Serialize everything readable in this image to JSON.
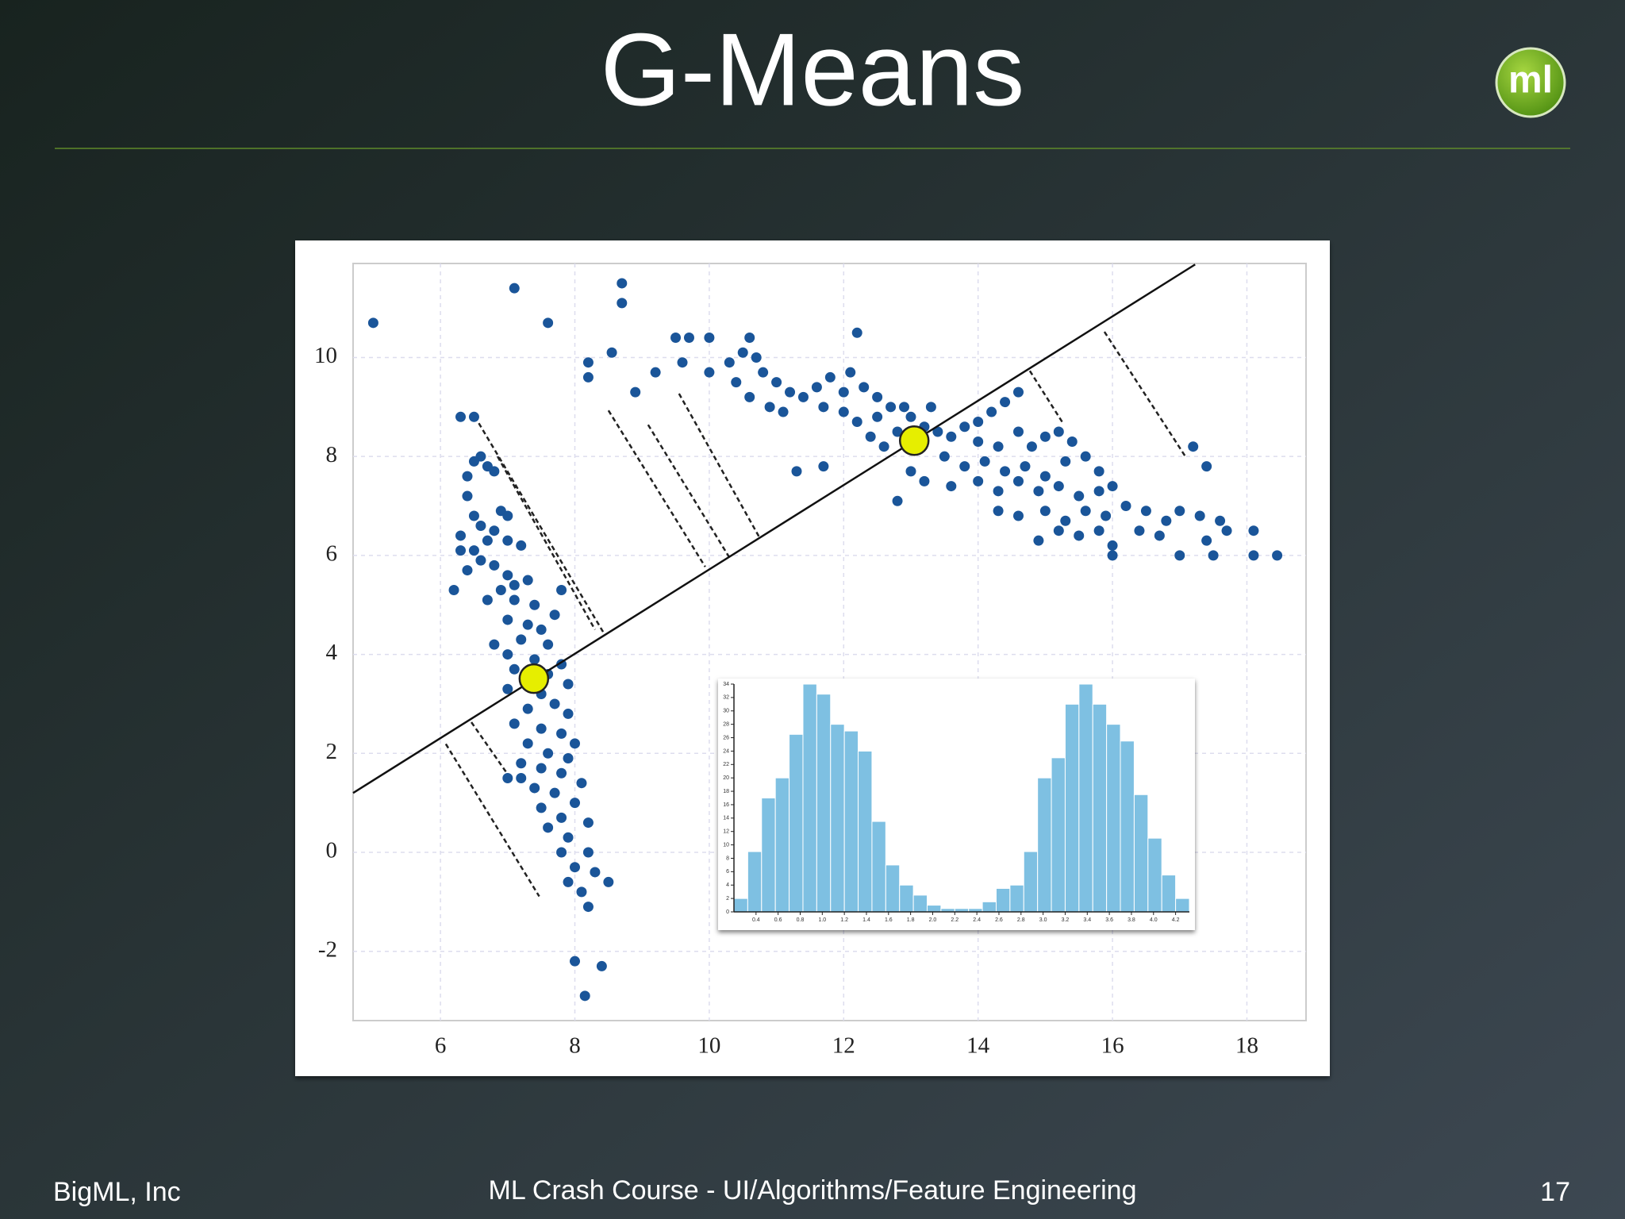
{
  "slide": {
    "title": "G-Means",
    "logo": "ml",
    "footer_left": "BigML, Inc",
    "footer_center": "ML Crash Course - UI/Algorithms/Feature Engineering",
    "page_number": "17"
  },
  "chart_data": [
    {
      "type": "scatter",
      "color": "#1a5599",
      "grid": true,
      "xlim": [
        4.7,
        18.88
      ],
      "ylim": [
        -3.4,
        11.9
      ],
      "xticks": [
        6,
        8,
        10,
        12,
        14,
        16,
        18
      ],
      "yticks": [
        -2,
        0,
        2,
        4,
        6,
        8,
        10
      ],
      "x": [
        6.3,
        6.5,
        6.6,
        6.5,
        6.4,
        6.7,
        6.8,
        6.4,
        6.5,
        6.6,
        6.3,
        6.7,
        6.9,
        7.0,
        6.8,
        6.3,
        6.5,
        7.0,
        7.2,
        6.6,
        6.8,
        6.4,
        7.0,
        7.1,
        6.9,
        7.3,
        6.2,
        6.7,
        7.1,
        7.4,
        7.8,
        7.7,
        7.0,
        7.3,
        7.5,
        7.2,
        7.6,
        6.8,
        7.0,
        7.4,
        7.8,
        7.1,
        7.6,
        7.9,
        7.0,
        7.5,
        7.7,
        7.3,
        7.9,
        7.1,
        7.5,
        7.8,
        8.0,
        7.3,
        7.6,
        7.9,
        7.2,
        7.5,
        7.8,
        8.1,
        7.4,
        7.7,
        8.0,
        7.5,
        7.8,
        8.2,
        7.6,
        7.9,
        8.2,
        7.8,
        8.0,
        8.3,
        7.9,
        8.1,
        8.2,
        8.5,
        7.0,
        7.2,
        8.0,
        8.4,
        8.15,
        5.0,
        7.1,
        7.6,
        8.7,
        8.7,
        8.2,
        8.2,
        8.55,
        8.9,
        9.2,
        9.5,
        9.7,
        10.0,
        9.6,
        10.0,
        10.3,
        10.5,
        10.6,
        10.7,
        10.4,
        10.8,
        11.0,
        11.2,
        10.6,
        10.9,
        11.1,
        11.4,
        11.6,
        11.8,
        12.1,
        12.2,
        12.0,
        12.3,
        12.5,
        11.7,
        12.0,
        12.2,
        12.5,
        12.7,
        12.9,
        13.0,
        13.3,
        13.2,
        12.4,
        12.6,
        12.8,
        13.4,
        13.6,
        13.8,
        14.0,
        14.2,
        14.4,
        14.6,
        14.0,
        14.3,
        14.6,
        14.8,
        15.0,
        15.2,
        15.4,
        13.5,
        13.8,
        14.1,
        14.4,
        14.7,
        15.0,
        15.3,
        15.6,
        15.8,
        13.0,
        13.2,
        13.6,
        14.0,
        14.3,
        14.6,
        14.9,
        15.2,
        15.5,
        15.8,
        16.0,
        14.3,
        14.6,
        15.0,
        15.3,
        15.6,
        15.9,
        16.2,
        16.5,
        16.8,
        17.0,
        17.3,
        17.6,
        14.9,
        15.2,
        15.5,
        15.8,
        16.0,
        16.4,
        16.7,
        17.0,
        17.4,
        17.5,
        17.7,
        18.1,
        18.1,
        18.45,
        17.2,
        17.4,
        11.3,
        11.7,
        12.8,
        16.0
      ],
      "y": [
        8.8,
        8.8,
        8.0,
        7.9,
        7.6,
        7.8,
        7.7,
        7.2,
        6.8,
        6.6,
        6.4,
        6.3,
        6.9,
        6.8,
        6.5,
        6.1,
        6.1,
        6.3,
        6.2,
        5.9,
        5.8,
        5.7,
        5.6,
        5.4,
        5.3,
        5.5,
        5.3,
        5.1,
        5.1,
        5.0,
        5.3,
        4.8,
        4.7,
        4.6,
        4.5,
        4.3,
        4.2,
        4.2,
        4.0,
        3.9,
        3.8,
        3.7,
        3.6,
        3.4,
        3.3,
        3.2,
        3.0,
        2.9,
        2.8,
        2.6,
        2.5,
        2.4,
        2.2,
        2.2,
        2.0,
        1.9,
        1.8,
        1.7,
        1.6,
        1.4,
        1.3,
        1.2,
        1.0,
        0.9,
        0.7,
        0.6,
        0.5,
        0.3,
        0.0,
        0.0,
        -0.3,
        -0.4,
        -0.6,
        -0.8,
        -1.1,
        -0.6,
        1.5,
        1.5,
        -2.2,
        -2.3,
        -2.9,
        10.7,
        11.4,
        10.7,
        11.5,
        11.1,
        9.6,
        9.9,
        10.1,
        9.3,
        9.7,
        10.4,
        10.4,
        10.4,
        9.9,
        9.7,
        9.9,
        10.1,
        10.4,
        10.0,
        9.5,
        9.7,
        9.5,
        9.3,
        9.2,
        9.0,
        8.9,
        9.2,
        9.4,
        9.6,
        9.7,
        10.5,
        9.3,
        9.4,
        9.2,
        9.0,
        8.9,
        8.7,
        8.8,
        9.0,
        9.0,
        8.8,
        9.0,
        8.6,
        8.4,
        8.2,
        8.5,
        8.5,
        8.4,
        8.6,
        8.7,
        8.9,
        9.1,
        9.3,
        8.3,
        8.2,
        8.5,
        8.2,
        8.4,
        8.5,
        8.3,
        8.0,
        7.8,
        7.9,
        7.7,
        7.8,
        7.6,
        7.9,
        8.0,
        7.7,
        7.7,
        7.5,
        7.4,
        7.5,
        7.3,
        7.5,
        7.3,
        7.4,
        7.2,
        7.3,
        7.4,
        6.9,
        6.8,
        6.9,
        6.7,
        6.9,
        6.8,
        7.0,
        6.9,
        6.7,
        6.9,
        6.8,
        6.7,
        6.3,
        6.5,
        6.4,
        6.5,
        6.2,
        6.5,
        6.4,
        6.0,
        6.3,
        6.0,
        6.5,
        6.5,
        6.0,
        6.0,
        8.2,
        7.8,
        7.7,
        7.8,
        7.1,
        6.0
      ],
      "line": {
        "x": [
          4.7,
          17.23
        ],
        "y": [
          1.2,
          11.88
        ]
      },
      "centers": {
        "color": "#e6ee00",
        "x": [
          7.39,
          13.05
        ],
        "y": [
          3.51,
          8.32
        ]
      },
      "projections": [
        {
          "x": [
            6.51,
            8.44
          ],
          "y": [
            8.81,
            4.41
          ]
        },
        {
          "x": [
            6.85,
            8.3
          ],
          "y": [
            8.0,
            4.5
          ]
        },
        {
          "x": [
            8.5,
            9.94
          ],
          "y": [
            8.93,
            5.77
          ]
        },
        {
          "x": [
            9.09,
            10.29
          ],
          "y": [
            8.64,
            5.98
          ]
        },
        {
          "x": [
            9.55,
            10.74
          ],
          "y": [
            9.27,
            6.38
          ]
        },
        {
          "x": [
            14.77,
            15.26
          ],
          "y": [
            9.73,
            8.68
          ]
        },
        {
          "x": [
            15.88,
            17.08
          ],
          "y": [
            10.52,
            8.01
          ]
        },
        {
          "x": [
            6.08,
            7.47
          ],
          "y": [
            2.19,
            -0.89
          ]
        },
        {
          "x": [
            6.46,
            7.03
          ],
          "y": [
            2.63,
            1.52
          ]
        }
      ]
    },
    {
      "type": "histogram",
      "color": "#7ec0e2",
      "bins": [
        0.2,
        0.325,
        0.45,
        0.575,
        0.7,
        0.825,
        0.95,
        1.075,
        1.2,
        1.325,
        1.45,
        1.575,
        1.7,
        1.825,
        1.95,
        2.075,
        2.2,
        2.325,
        2.45,
        2.575,
        2.7,
        2.825,
        2.95,
        3.075,
        3.2,
        3.325,
        3.45,
        3.575,
        3.7,
        3.825,
        3.95,
        4.075,
        4.2,
        4.325
      ],
      "counts": [
        2,
        9,
        17,
        20,
        26.5,
        34,
        32.5,
        28,
        27,
        24,
        13.5,
        7,
        4,
        2.5,
        1,
        0.5,
        0.5,
        0.5,
        1.5,
        3.5,
        4,
        9,
        20,
        23,
        31,
        34,
        31,
        28,
        25.5,
        17.5,
        11,
        5.5,
        2
      ],
      "xlim": [
        0.2,
        4.325
      ],
      "ylim": [
        0,
        34
      ],
      "xticks": [
        0.4,
        0.6,
        0.8,
        {
          "value": 1.0,
          "label": "1.0"
        },
        1.2,
        1.4,
        1.6,
        1.8,
        {
          "value": 2.0,
          "label": "2.0"
        },
        2.2,
        2.4,
        2.6,
        2.8,
        {
          "value": 3.0,
          "label": "3.0"
        },
        3.2,
        3.4,
        3.6,
        3.8,
        {
          "value": 4.0,
          "label": "4.0"
        },
        4.2
      ],
      "yticks": [
        0,
        2,
        4,
        6,
        8,
        10,
        12,
        14,
        16,
        18,
        20,
        22,
        24,
        26,
        28,
        30,
        32,
        34
      ]
    }
  ]
}
